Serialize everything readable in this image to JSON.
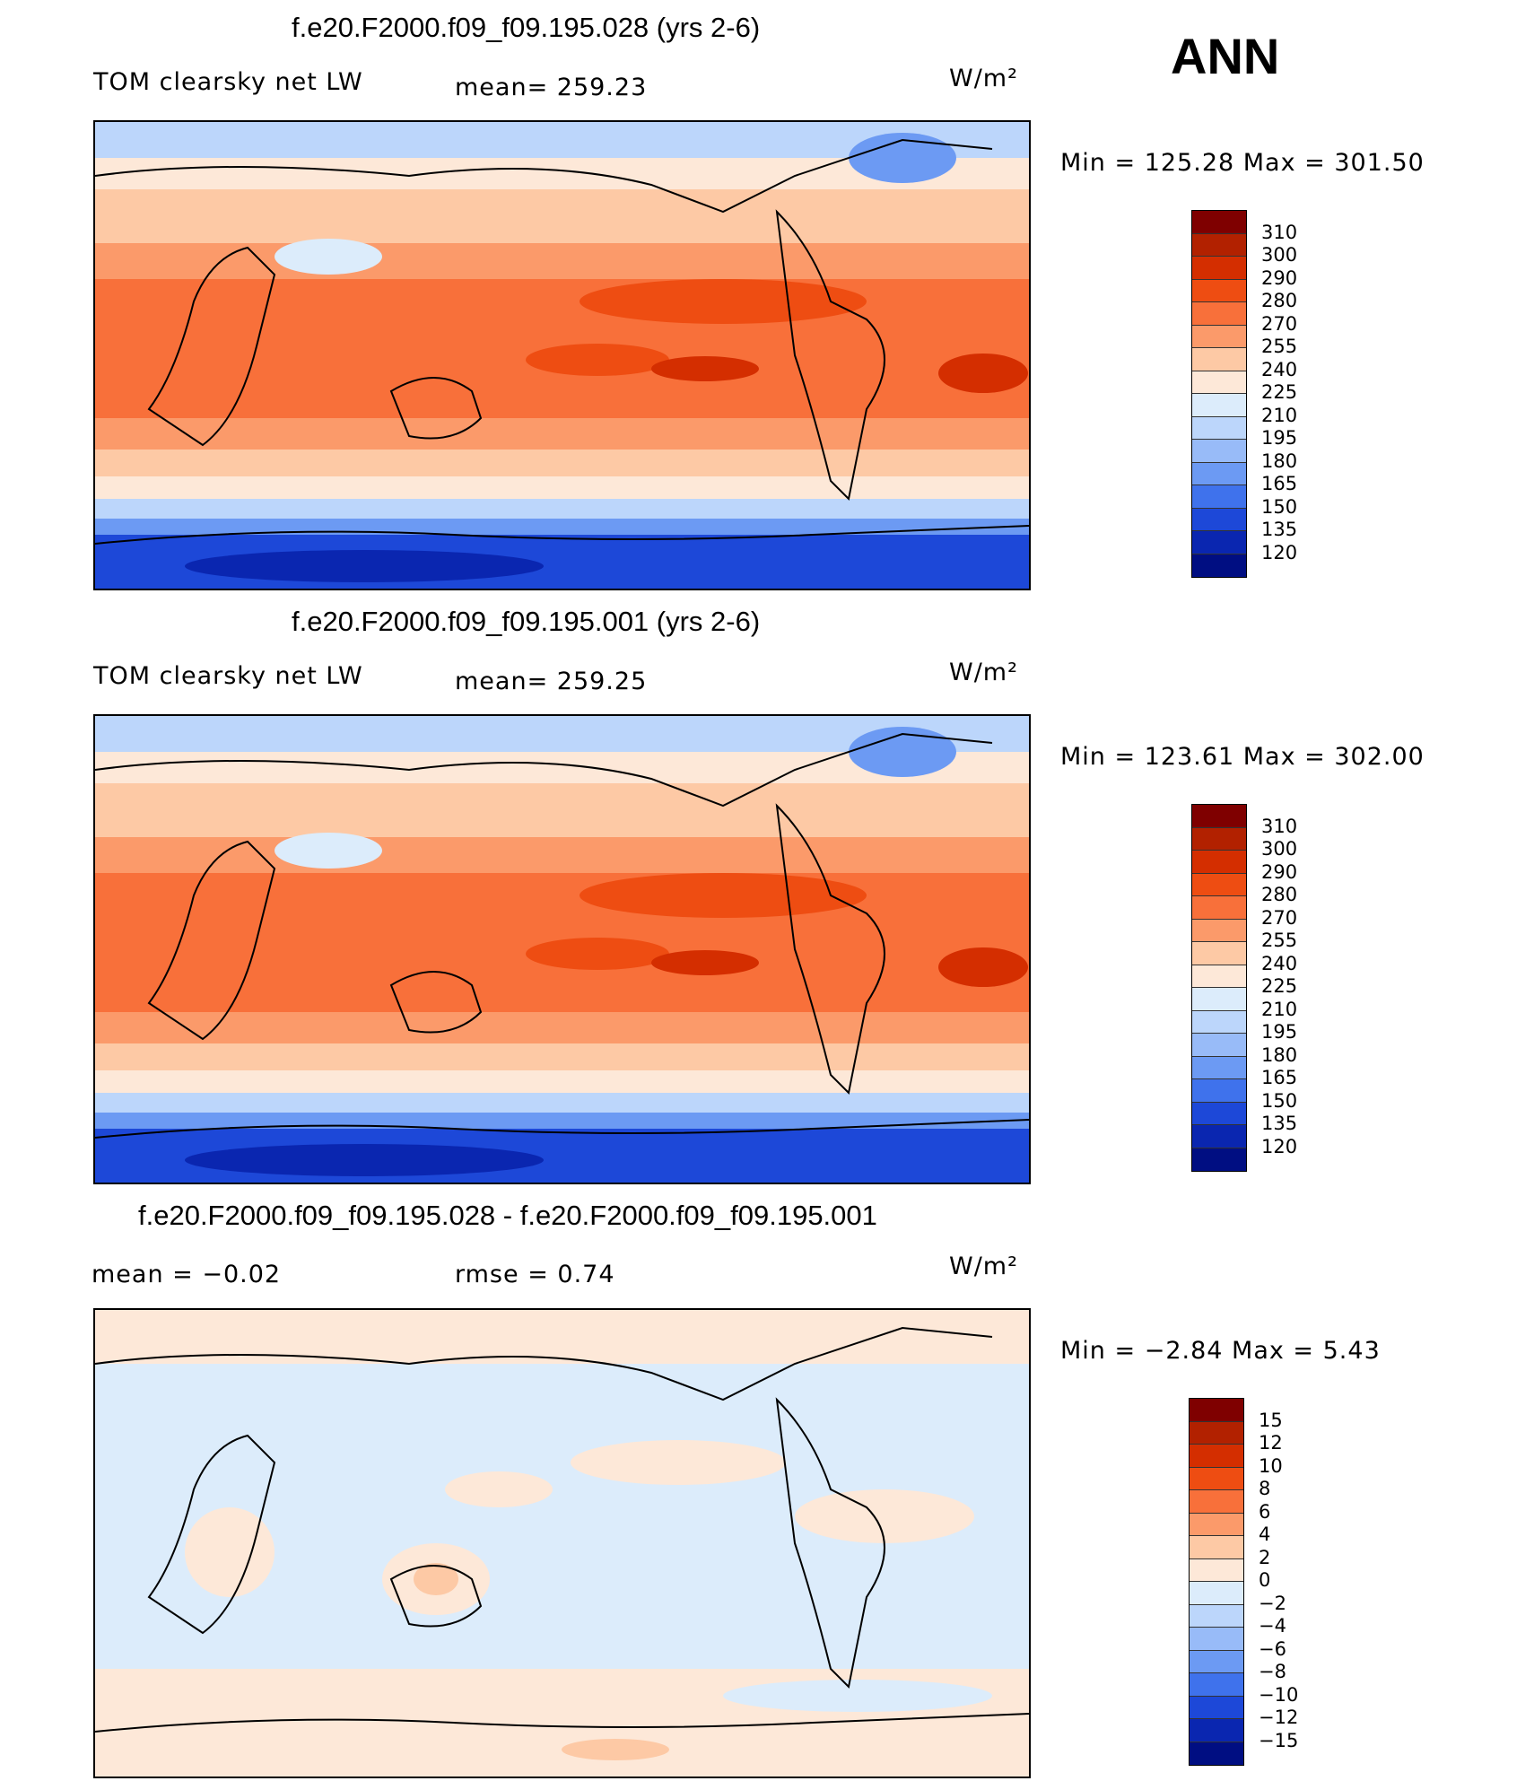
{
  "ann_label": "ANN",
  "panels": [
    {
      "title": "f.e20.F2000.f09_f09.195.028 (yrs 2-6)",
      "left_label": "TOM clearsky net LW",
      "center_label": "mean= 259.23",
      "units": "W/m²",
      "minmax": "Min  =  125.28  Max  =  301.50",
      "scale": [
        310,
        300,
        290,
        280,
        270,
        255,
        240,
        225,
        210,
        195,
        180,
        165,
        150,
        135,
        120
      ]
    },
    {
      "title": "f.e20.F2000.f09_f09.195.001 (yrs 2-6)",
      "left_label": "TOM clearsky net LW",
      "center_label": "mean= 259.25",
      "units": "W/m²",
      "minmax": "Min  =  123.61  Max  =  302.00",
      "scale": [
        310,
        300,
        290,
        280,
        270,
        255,
        240,
        225,
        210,
        195,
        180,
        165,
        150,
        135,
        120
      ]
    },
    {
      "title": "f.e20.F2000.f09_f09.195.028 - f.e20.F2000.f09_f09.195.001",
      "left_label": "mean  =     −0.02",
      "center_label": "rmse  =     0.74",
      "units": "W/m²",
      "minmax": "Min  =    −2.84  Max  =      5.43",
      "scale": [
        "15",
        "12",
        "10",
        "8",
        "6",
        "4",
        "2",
        "0",
        "−2",
        "−4",
        "−6",
        "−8",
        "−10",
        "−12",
        "−15"
      ]
    }
  ],
  "colors": {
    "abs": [
      "#7f0000",
      "#b22100",
      "#d42e00",
      "#ee4d12",
      "#f8703a",
      "#fb9a6a",
      "#fdc9a5",
      "#fde8d8",
      "#dcecfb",
      "#bcd6fb",
      "#98bbf8",
      "#6c9af3",
      "#3f72ec",
      "#1d48d8",
      "#0a26b0",
      "#000e82"
    ],
    "diff": [
      "#7f0000",
      "#b22100",
      "#d42e00",
      "#ee4d12",
      "#f8703a",
      "#fb9a6a",
      "#fdc9a5",
      "#fde8d8",
      "#dcecfb",
      "#bcd6fb",
      "#98bbf8",
      "#6c9af3",
      "#3f72ec",
      "#1d48d8",
      "#0a26b0",
      "#000e82"
    ]
  }
}
